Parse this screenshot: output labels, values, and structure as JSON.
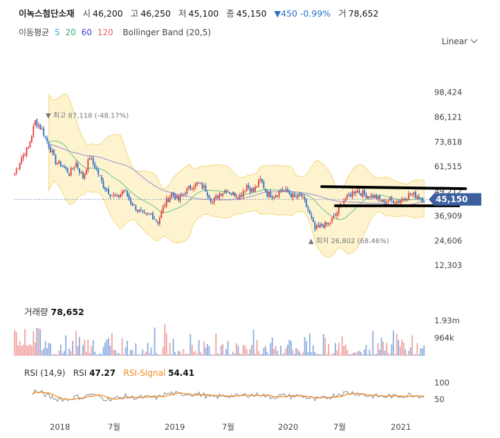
{
  "header": {
    "stock_name": "이녹스첨단소재",
    "open_label": "시",
    "open": "46,200",
    "high_label": "고",
    "high": "46,250",
    "low_label": "저",
    "low": "45,100",
    "close_label": "종",
    "close": "45,150",
    "change_arrow": "▼",
    "change": "450",
    "change_pct": "-0.99%",
    "volume_label": "거",
    "volume": "78,652"
  },
  "legend": {
    "ma_label": "이동평균",
    "ma_periods": [
      "5",
      "20",
      "60",
      "120"
    ],
    "ma_colors": [
      "#29b6c9",
      "#3fa568",
      "#3b3bd1",
      "#e06666"
    ],
    "bollinger": "Bollinger Band (20,5)"
  },
  "scale_select": {
    "value": "Linear"
  },
  "colors": {
    "up": "#e0403c",
    "down": "#2c6fc7",
    "band_fill": "#fdf4cf",
    "band_line": "#f3d77a",
    "current_price_bg": "#3d5fa0",
    "rsi_line": "#888888",
    "rsi_signal": "#f08a24"
  },
  "chart_data": {
    "type": "candlestick",
    "price_axis_ticks": [
      "98,424",
      "86,121",
      "73,818",
      "61,515",
      "49,212",
      "36,909",
      "24,606",
      "12,303"
    ],
    "x_axis_ticks": [
      "2018",
      "7월",
      "2019",
      "7월",
      "2020",
      "7월",
      "2021"
    ],
    "current_price": "45,150",
    "high_annotation": {
      "label": "최고",
      "value": "87,118 (-48.17%)",
      "price": 87118
    },
    "low_annotation": {
      "label": "최저",
      "value": "26,802 (68.46%)",
      "price": 26802
    },
    "price_path": [
      [
        0,
        58
      ],
      [
        4,
        66
      ],
      [
        8,
        71
      ],
      [
        12,
        84
      ],
      [
        16,
        80
      ],
      [
        20,
        72
      ],
      [
        24,
        64
      ],
      [
        28,
        62
      ],
      [
        32,
        58
      ],
      [
        36,
        63
      ],
      [
        40,
        56
      ],
      [
        44,
        66
      ],
      [
        48,
        60
      ],
      [
        52,
        52
      ],
      [
        56,
        48
      ],
      [
        60,
        46
      ],
      [
        64,
        50
      ],
      [
        68,
        44
      ],
      [
        72,
        40
      ],
      [
        76,
        37
      ],
      [
        80,
        38
      ],
      [
        84,
        34
      ],
      [
        88,
        43
      ],
      [
        92,
        48
      ],
      [
        96,
        45
      ],
      [
        100,
        49
      ],
      [
        104,
        52
      ],
      [
        108,
        53
      ],
      [
        112,
        50
      ],
      [
        116,
        44
      ],
      [
        120,
        48
      ],
      [
        124,
        50
      ],
      [
        128,
        48
      ],
      [
        132,
        47
      ],
      [
        136,
        52
      ],
      [
        140,
        49
      ],
      [
        144,
        55
      ],
      [
        148,
        48
      ],
      [
        152,
        47
      ],
      [
        156,
        50
      ],
      [
        160,
        49
      ],
      [
        164,
        46
      ],
      [
        168,
        47
      ],
      [
        172,
        40
      ],
      [
        176,
        30
      ],
      [
        180,
        32
      ],
      [
        184,
        33
      ],
      [
        188,
        37
      ],
      [
        192,
        44
      ],
      [
        196,
        47
      ],
      [
        200,
        50
      ],
      [
        204,
        48
      ],
      [
        208,
        47
      ],
      [
        212,
        46
      ],
      [
        216,
        44
      ],
      [
        220,
        45
      ],
      [
        224,
        44
      ],
      [
        228,
        46
      ],
      [
        232,
        48
      ],
      [
        236,
        47
      ],
      [
        240,
        45
      ]
    ],
    "volume_axis_ticks": [
      "1.93m",
      "964k"
    ],
    "volume_title": "거래량",
    "volume_value": "78,652",
    "rsi_axis_ticks": [
      "100",
      "50"
    ],
    "rsi": {
      "label": "RSI (14,9)",
      "rsi_label": "RSI",
      "rsi_value": "47.27",
      "signal_label": "RSI-Signal",
      "signal_value": "54.41"
    },
    "trend_lines": [
      {
        "from": [
          180,
          51.5
        ],
        "to": [
          240,
          50.5
        ]
      },
      {
        "from": [
          188,
          42
        ],
        "to": [
          236,
          42
        ]
      }
    ]
  }
}
